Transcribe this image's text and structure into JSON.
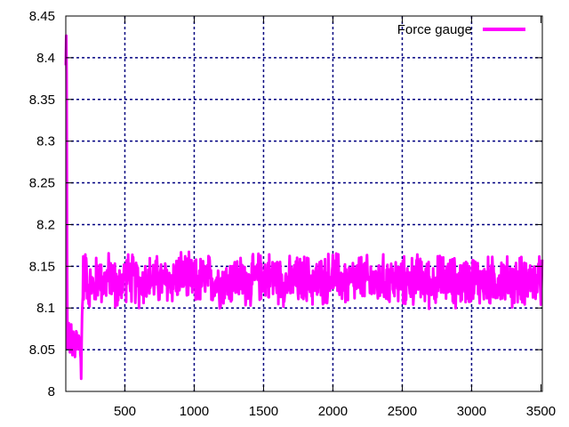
{
  "chart_data": {
    "type": "line",
    "title": "",
    "xlabel": "",
    "ylabel": "",
    "xlim": [
      74,
      3510
    ],
    "ylim": [
      8.0,
      8.45
    ],
    "x_ticks": [
      500,
      1000,
      1500,
      2000,
      2500,
      3000,
      3500
    ],
    "x_tick_labels": [
      "500",
      "1000",
      "1500",
      "2000",
      "2500",
      "3000",
      "3500"
    ],
    "y_ticks": [
      8.0,
      8.05,
      8.1,
      8.15,
      8.2,
      8.25,
      8.3,
      8.35,
      8.4,
      8.45
    ],
    "y_tick_labels": [
      "8",
      "8.05",
      "8.1",
      "8.15",
      "8.2",
      "8.25",
      "8.3",
      "8.35",
      "8.4",
      "8.45"
    ],
    "grid": true,
    "legend_position": "top-right",
    "series": [
      {
        "name": "Force gauge",
        "color": "#ff00ff",
        "x": [
          74,
          76,
          78,
          80,
          82,
          84,
          86,
          90,
          95,
          100,
          110,
          120,
          130,
          140,
          150,
          160,
          170,
          180,
          185,
          190,
          200,
          210,
          220,
          240,
          260,
          280,
          300,
          350,
          400,
          450,
          500,
          600,
          700,
          800,
          900,
          1000,
          1100,
          1200,
          1300,
          1400,
          1500,
          1600,
          1700,
          1800,
          1900,
          2000,
          2100,
          2200,
          2300,
          2400,
          2500,
          2600,
          2700,
          2800,
          2900,
          3000,
          3100,
          3200,
          3300,
          3400,
          3500,
          3510
        ],
        "values": [
          8.39,
          8.42,
          8.43,
          8.38,
          8.24,
          8.1,
          8.05,
          8.06,
          8.08,
          8.05,
          8.07,
          8.05,
          8.06,
          8.04,
          8.07,
          8.05,
          8.07,
          8.04,
          8.03,
          8.08,
          8.14,
          8.13,
          8.15,
          8.12,
          8.13,
          8.12,
          8.14,
          8.13,
          8.14,
          8.12,
          8.14,
          8.13,
          8.135,
          8.13,
          8.14,
          8.13,
          8.135,
          8.13,
          8.135,
          8.13,
          8.14,
          8.135,
          8.13,
          8.135,
          8.13,
          8.14,
          8.13,
          8.135,
          8.13,
          8.135,
          8.13,
          8.135,
          8.13,
          8.135,
          8.13,
          8.135,
          8.13,
          8.135,
          8.13,
          8.135,
          8.13,
          8.135
        ],
        "noise_amplitude": 0.035
      }
    ]
  }
}
